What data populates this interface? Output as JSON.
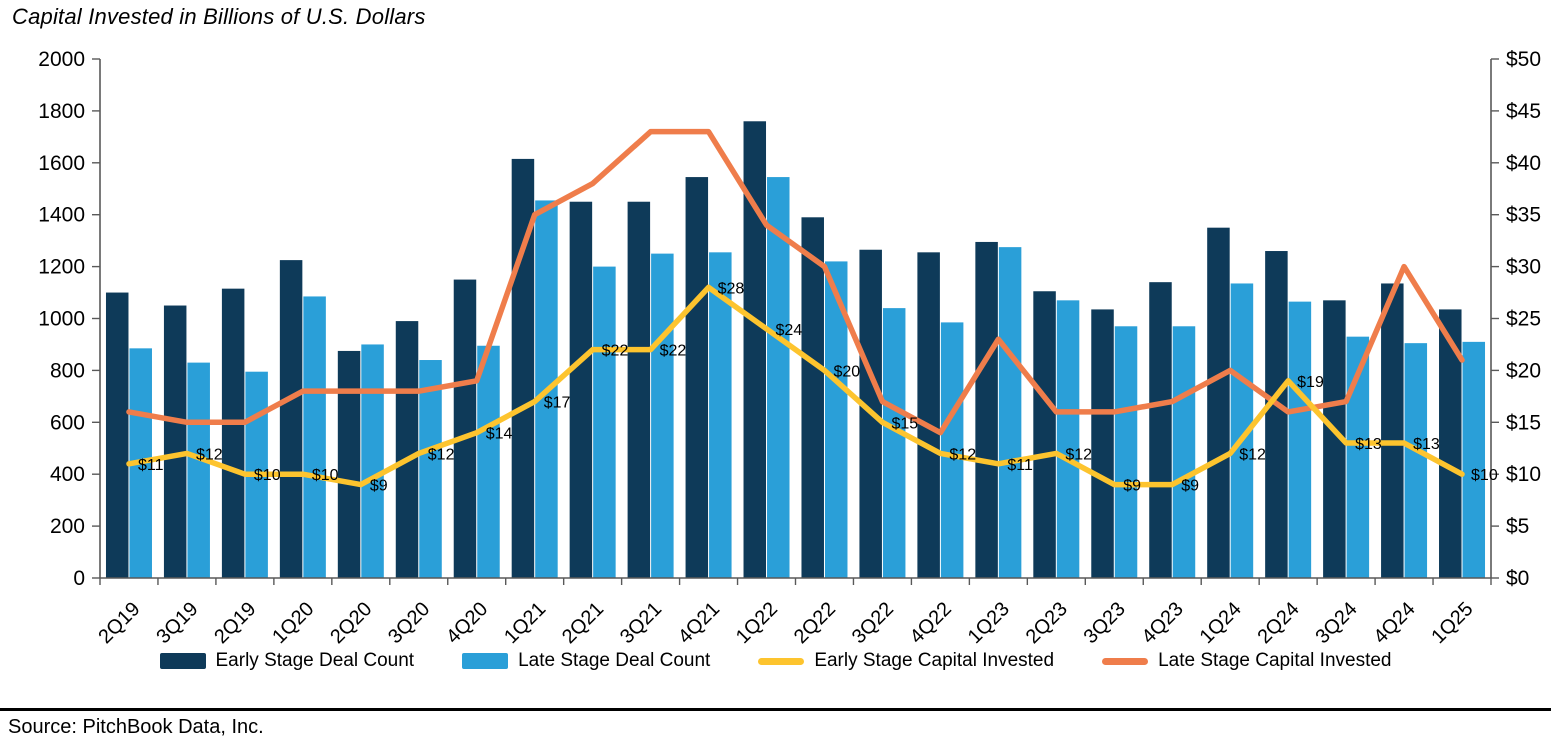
{
  "title": "Capital Invested in Billions of U.S. Dollars",
  "source": "Source: PitchBook Data, Inc.",
  "chart_data": {
    "type": "bar",
    "subtype": "grouped-bars-with-lines-combo",
    "title": "Capital Invested in Billions of U.S. Dollars",
    "grid": false,
    "legend_position": "bottom",
    "categories": [
      "2Q19",
      "3Q19",
      "2Q19",
      "1Q20",
      "2Q20",
      "3Q20",
      "4Q20",
      "1Q21",
      "2Q21",
      "3Q21",
      "4Q21",
      "1Q22",
      "2Q22",
      "3Q22",
      "4Q22",
      "1Q23",
      "2Q23",
      "3Q23",
      "4Q23",
      "1Q24",
      "2Q24",
      "3Q24",
      "4Q24",
      "1Q25"
    ],
    "left_axis": {
      "min": 0,
      "max": 2000,
      "step": 200,
      "labels": [
        "2000",
        "1800",
        "1600",
        "1400",
        "1200",
        "1000",
        "800",
        "600",
        "400",
        "200",
        "0"
      ],
      "applies_to": "deal counts"
    },
    "right_axis": {
      "min": 0,
      "max": 50,
      "step": 5,
      "labels": [
        "$50",
        "$45",
        "$40",
        "$35",
        "$30",
        "$25",
        "$20",
        "$15",
        "$10",
        "$5",
        "$0"
      ],
      "applies_to": "capital invested, billions USD"
    },
    "series": [
      {
        "name": "Early Stage Deal Count",
        "type": "bar",
        "axis": "left",
        "color": "#0E3A59",
        "values": [
          1100,
          1050,
          1115,
          1225,
          875,
          990,
          1150,
          1615,
          1450,
          1450,
          1545,
          1760,
          1390,
          1265,
          1255,
          1295,
          1105,
          1035,
          1140,
          1350,
          1260,
          1070,
          1135,
          1035
        ]
      },
      {
        "name": "Late Stage Deal Count",
        "type": "bar",
        "axis": "left",
        "color": "#2A9FD8",
        "values": [
          885,
          830,
          795,
          1085,
          900,
          840,
          895,
          1455,
          1200,
          1250,
          1255,
          1545,
          1220,
          1040,
          985,
          1275,
          1070,
          970,
          970,
          1135,
          1065,
          930,
          905,
          910
        ]
      },
      {
        "name": "Late Stage Capital Invested",
        "type": "line",
        "axis": "right",
        "color": "#EF7D4B",
        "values": [
          16,
          15,
          15,
          18,
          18,
          18,
          19,
          35,
          38,
          43,
          43,
          34,
          30,
          17,
          14,
          23,
          16,
          16,
          17,
          20,
          16,
          17,
          30,
          21
        ]
      },
      {
        "name": "Early Stage Capital Invested",
        "type": "line",
        "axis": "right",
        "color": "#FDC42E",
        "values": [
          11,
          12,
          10,
          10,
          9,
          12,
          14,
          17,
          22,
          22,
          28,
          24,
          20,
          15,
          12,
          11,
          12,
          9,
          9,
          12,
          19,
          13,
          13,
          10
        ],
        "point_labels": [
          "$11",
          "$12",
          "$10",
          "$10",
          "$9",
          "$12",
          "$14",
          "$17",
          "$22",
          "$22",
          "$28",
          "$24",
          "$20",
          "$15",
          "$12",
          "$11",
          "$12",
          "$9",
          "$9",
          "$12",
          "$19",
          "$13",
          "$13",
          "$10"
        ]
      }
    ],
    "legend_order": [
      "Early Stage Deal Count",
      "Late Stage Deal Count",
      "Early Stage Capital Invested",
      "Late Stage Capital Invested"
    ]
  }
}
